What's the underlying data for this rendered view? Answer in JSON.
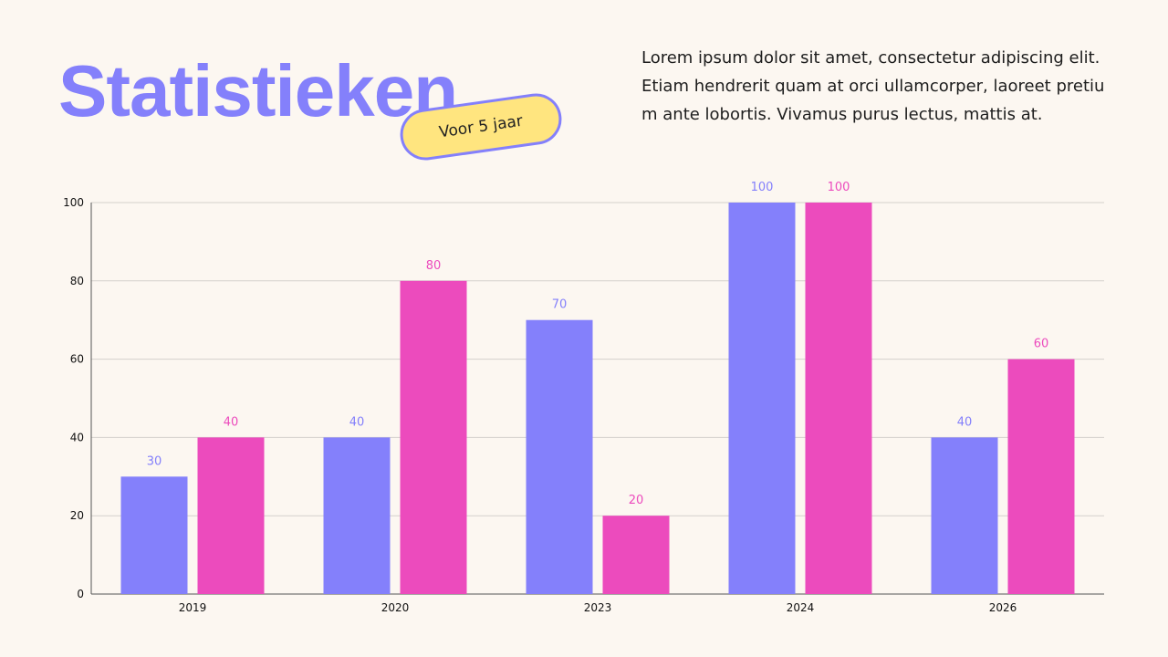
{
  "header": {
    "title": "Statistieken",
    "badge": "Voor 5 jaar",
    "intro": "Lorem ipsum dolor sit amet, consectetur adipiscing elit. Etiam hendrerit quam at orci ullamcorper, laoreet pretium ante lobortis. Vivamus purus lectus, mattis at."
  },
  "colors": {
    "series1": "#8480fb",
    "series2": "#ec4bbd",
    "accent": "#ffe57f",
    "background": "#fcf7f1"
  },
  "chart_data": {
    "type": "bar",
    "categories": [
      "2019",
      "2020",
      "2023",
      "2024",
      "2026"
    ],
    "series": [
      {
        "values": [
          30,
          40,
          70,
          100,
          40
        ],
        "color": "#8480fb"
      },
      {
        "values": [
          40,
          80,
          20,
          100,
          60
        ],
        "color": "#ec4bbd"
      }
    ],
    "ylim": [
      0,
      100
    ],
    "yticks": [
      0,
      20,
      40,
      60,
      80,
      100
    ],
    "grid": true,
    "data_labels": true,
    "title": "",
    "xlabel": "",
    "ylabel": ""
  }
}
